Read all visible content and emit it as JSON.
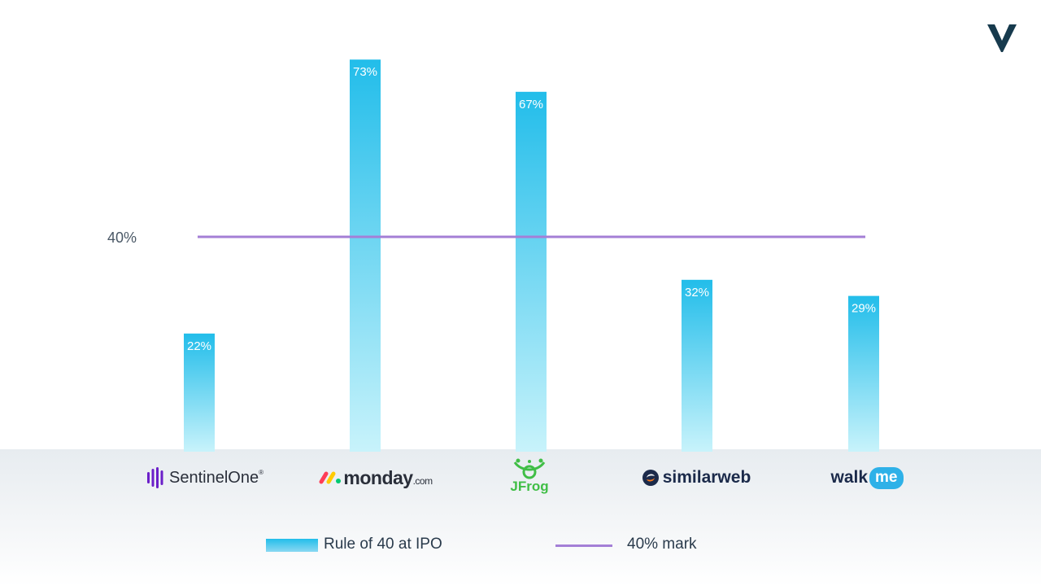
{
  "chart_data": {
    "type": "bar",
    "categories": [
      "SentinelOne",
      "monday.com",
      "JFrog",
      "similarweb",
      "walkme"
    ],
    "series": [
      {
        "name": "Rule of 40 at IPO",
        "values": [
          22,
          73,
          67,
          32,
          29
        ]
      }
    ],
    "data_labels": [
      "22%",
      "73%",
      "67%",
      "32%",
      "29%"
    ],
    "reference_line": {
      "name": "40% mark",
      "value": 40,
      "label": "40%"
    },
    "ylim": [
      0,
      80
    ],
    "grid": false,
    "legend": "bottom-center"
  },
  "logos": {
    "sentinelone": {
      "name": "Sentinel",
      "suffix": "One",
      "mark": "®"
    },
    "monday": {
      "name": "monday",
      "suffix": ".com"
    },
    "jfrog": {
      "name": "JFrog"
    },
    "similarweb": {
      "name": "similarweb"
    },
    "walkme": {
      "walk": "walk",
      "me": "me"
    }
  },
  "colors": {
    "bar_top": "#22bdea",
    "bar_bottom": "#c8f3fb",
    "reference_line": "#a47fd6",
    "brand": "#173a4d"
  }
}
